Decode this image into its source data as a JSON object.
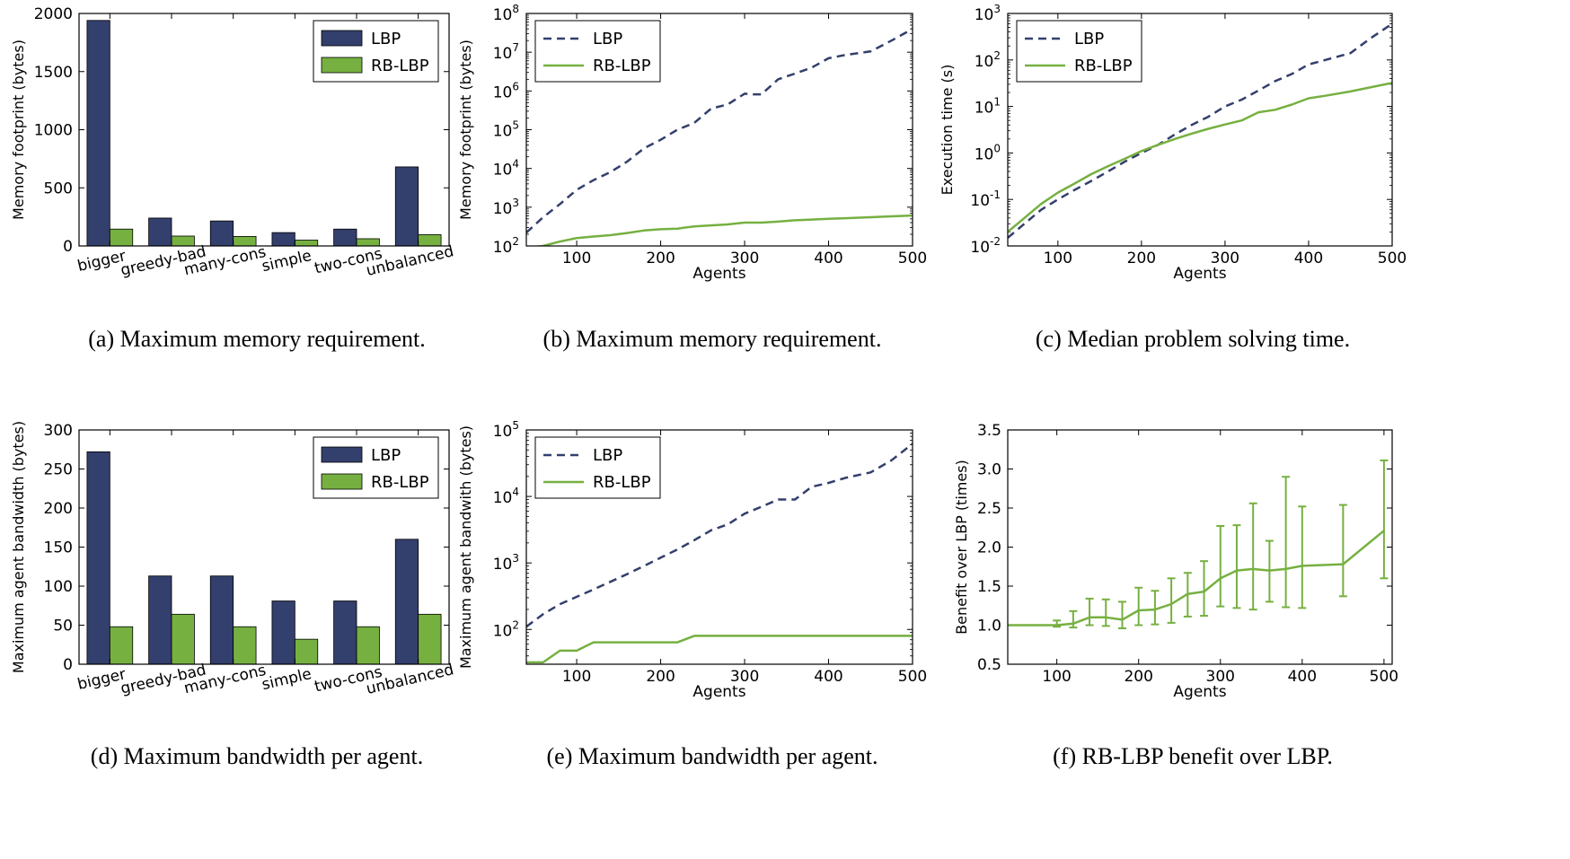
{
  "colors": {
    "lbp": "#333f6c",
    "rblbp": "#76b041",
    "axis": "#000000"
  },
  "chart_data": [
    {
      "id": "a",
      "type": "bar",
      "caption": "(a) Maximum memory requirement.",
      "ylabel": "Memory footprint (bytes)",
      "xlabel": "",
      "ylim": [
        0,
        2000
      ],
      "yticks": [
        0,
        500,
        1000,
        1500,
        2000
      ],
      "ytick_labels": [
        "0",
        "500",
        "1000",
        "1500",
        "2000"
      ],
      "categories": [
        "bigger",
        "greedy-bad",
        "many-cons",
        "simple",
        "two-cons",
        "unbalanced"
      ],
      "series": [
        {
          "name": "LBP",
          "color": "#333f6c",
          "values": [
            1940,
            240,
            215,
            115,
            145,
            680
          ]
        },
        {
          "name": "RB-LBP",
          "color": "#76b041",
          "values": [
            145,
            85,
            82,
            50,
            62,
            97
          ]
        }
      ],
      "legend": "upper right"
    },
    {
      "id": "b",
      "type": "line",
      "caption": "(b) Maximum memory requirement.",
      "ylabel": "Memory footprint (bytes)",
      "xlabel": "Agents",
      "yscale": "log",
      "xlim": [
        40,
        500
      ],
      "ylim": [
        100,
        100000000
      ],
      "xticks": [
        100,
        200,
        300,
        400,
        500
      ],
      "xtick_labels": [
        "100",
        "200",
        "300",
        "400",
        "500"
      ],
      "yticks": [
        100,
        1000,
        10000,
        100000,
        1000000,
        10000000,
        100000000
      ],
      "ytick_labels": [
        {
          "base": "10",
          "exp": "2"
        },
        {
          "base": "10",
          "exp": "3"
        },
        {
          "base": "10",
          "exp": "4"
        },
        {
          "base": "10",
          "exp": "5"
        },
        {
          "base": "10",
          "exp": "6"
        },
        {
          "base": "10",
          "exp": "7"
        },
        {
          "base": "10",
          "exp": "8"
        }
      ],
      "series": [
        {
          "name": "LBP",
          "style": "dashed",
          "color": "#333f6c",
          "x": [
            40,
            60,
            80,
            100,
            120,
            140,
            160,
            180,
            200,
            220,
            240,
            260,
            280,
            300,
            310,
            320,
            340,
            360,
            380,
            400,
            420,
            450,
            475,
            500
          ],
          "y": [
            220,
            550,
            1200,
            2800,
            5000,
            8000,
            15000,
            33000,
            55000,
            100000,
            150000,
            350000,
            450000,
            850000,
            820000,
            820000,
            2000000,
            2800000,
            4000000,
            7000000,
            8500000,
            10500000,
            20000000,
            40000000
          ]
        },
        {
          "name": "RB-LBP",
          "style": "solid",
          "color": "#76b041",
          "x": [
            40,
            60,
            80,
            100,
            120,
            140,
            160,
            180,
            200,
            220,
            240,
            260,
            280,
            300,
            320,
            340,
            360,
            380,
            400,
            420,
            450,
            475,
            500
          ],
          "y": [
            90,
            100,
            130,
            160,
            175,
            190,
            215,
            250,
            270,
            280,
            320,
            340,
            360,
            400,
            400,
            425,
            460,
            480,
            500,
            520,
            550,
            580,
            610
          ]
        }
      ],
      "legend": "upper left"
    },
    {
      "id": "c",
      "type": "line",
      "caption": "(c) Median problem solving time.",
      "ylabel": "Execution time (s)",
      "xlabel": "Agents",
      "yscale": "log",
      "xlim": [
        40,
        500
      ],
      "ylim": [
        0.01,
        1000
      ],
      "xticks": [
        100,
        200,
        300,
        400,
        500
      ],
      "xtick_labels": [
        "100",
        "200",
        "300",
        "400",
        "500"
      ],
      "yticks": [
        0.01,
        0.1,
        1,
        10,
        100,
        1000
      ],
      "ytick_labels": [
        {
          "base": "10",
          "exp": "-2"
        },
        {
          "base": "10",
          "exp": "-1"
        },
        {
          "base": "10",
          "exp": "0"
        },
        {
          "base": "10",
          "exp": "1"
        },
        {
          "base": "10",
          "exp": "2"
        },
        {
          "base": "10",
          "exp": "3"
        }
      ],
      "series": [
        {
          "name": "LBP",
          "style": "dashed",
          "color": "#333f6c",
          "x": [
            40,
            60,
            80,
            100,
            120,
            140,
            160,
            180,
            200,
            220,
            240,
            260,
            280,
            300,
            320,
            340,
            360,
            380,
            400,
            420,
            450,
            475,
            500
          ],
          "y": [
            0.015,
            0.03,
            0.06,
            0.1,
            0.16,
            0.25,
            0.4,
            0.65,
            1.0,
            1.5,
            2.5,
            4.0,
            6.0,
            10,
            14,
            22,
            35,
            50,
            80,
            100,
            140,
            300,
            600
          ]
        },
        {
          "name": "RB-LBP",
          "style": "solid",
          "color": "#76b041",
          "x": [
            40,
            60,
            80,
            100,
            120,
            140,
            160,
            180,
            200,
            220,
            240,
            260,
            280,
            300,
            320,
            340,
            360,
            380,
            400,
            420,
            450,
            475,
            500
          ],
          "y": [
            0.02,
            0.04,
            0.08,
            0.14,
            0.22,
            0.35,
            0.52,
            0.75,
            1.1,
            1.5,
            2.0,
            2.6,
            3.3,
            4.1,
            5.0,
            7.5,
            8.5,
            11,
            15,
            17,
            21,
            26,
            32
          ]
        }
      ],
      "legend": "upper left"
    },
    {
      "id": "d",
      "type": "bar",
      "caption": "(d) Maximum bandwidth per agent.",
      "ylabel": "Maximum agent bandwidth (bytes)",
      "xlabel": "",
      "ylim": [
        0,
        300
      ],
      "yticks": [
        0,
        50,
        100,
        150,
        200,
        250,
        300
      ],
      "ytick_labels": [
        "0",
        "50",
        "100",
        "150",
        "200",
        "250",
        "300"
      ],
      "categories": [
        "bigger",
        "greedy-bad",
        "many-cons",
        "simple",
        "two-cons",
        "unbalanced"
      ],
      "series": [
        {
          "name": "LBP",
          "color": "#333f6c",
          "values": [
            272,
            113,
            113,
            81,
            81,
            160
          ]
        },
        {
          "name": "RB-LBP",
          "color": "#76b041",
          "values": [
            48,
            64,
            48,
            32,
            48,
            64
          ]
        }
      ],
      "legend": "upper right"
    },
    {
      "id": "e",
      "type": "line",
      "caption": "(e) Maximum bandwidth per agent.",
      "ylabel": "Maximum agent bandwith (bytes)",
      "xlabel": "Agents",
      "yscale": "log",
      "xlim": [
        40,
        500
      ],
      "ylim": [
        30,
        100000
      ],
      "xticks": [
        100,
        200,
        300,
        400,
        500
      ],
      "xtick_labels": [
        "100",
        "200",
        "300",
        "400",
        "500"
      ],
      "yticks": [
        100,
        1000,
        10000,
        100000
      ],
      "ytick_labels": [
        {
          "base": "10",
          "exp": "2"
        },
        {
          "base": "10",
          "exp": "3"
        },
        {
          "base": "10",
          "exp": "4"
        },
        {
          "base": "10",
          "exp": "5"
        }
      ],
      "series": [
        {
          "name": "LBP",
          "style": "dashed",
          "color": "#333f6c",
          "x": [
            40,
            60,
            80,
            100,
            120,
            140,
            160,
            180,
            200,
            220,
            240,
            260,
            280,
            300,
            320,
            340,
            360,
            380,
            400,
            420,
            450,
            475,
            500
          ],
          "y": [
            110,
            170,
            240,
            310,
            400,
            520,
            680,
            900,
            1200,
            1600,
            2200,
            3100,
            3800,
            5500,
            7000,
            9000,
            9000,
            14000,
            16000,
            19000,
            23000,
            35000,
            62000
          ]
        },
        {
          "name": "RB-LBP",
          "style": "solid",
          "color": "#76b041",
          "x": [
            40,
            60,
            80,
            100,
            120,
            140,
            160,
            180,
            200,
            220,
            240,
            260,
            280,
            300,
            320,
            340,
            360,
            380,
            400,
            420,
            450,
            475,
            500
          ],
          "y": [
            32,
            32,
            48,
            48,
            64,
            64,
            64,
            64,
            64,
            64,
            80,
            80,
            80,
            80,
            80,
            80,
            80,
            80,
            80,
            80,
            80,
            80,
            80
          ]
        }
      ],
      "legend": "upper left"
    },
    {
      "id": "f",
      "type": "line",
      "caption": "(f) RB-LBP benefit over LBP.",
      "ylabel": "Benefit over LBP (times)",
      "xlabel": "Agents",
      "xlim": [
        40,
        510
      ],
      "ylim": [
        0.5,
        3.5
      ],
      "xticks": [
        100,
        200,
        300,
        400,
        500
      ],
      "xtick_labels": [
        "100",
        "200",
        "300",
        "400",
        "500"
      ],
      "yticks": [
        0.5,
        1.0,
        1.5,
        2.0,
        2.5,
        3.0,
        3.5
      ],
      "ytick_labels": [
        "0.5",
        "1.0",
        "1.5",
        "2.0",
        "2.5",
        "3.0",
        "3.5"
      ],
      "series": [
        {
          "name": "RB-LBP benefit",
          "style": "solid",
          "color": "#76b041",
          "x": [
            40,
            60,
            80,
            100,
            120,
            140,
            160,
            180,
            200,
            220,
            240,
            260,
            280,
            300,
            320,
            340,
            360,
            380,
            400,
            450,
            500
          ],
          "y": [
            1.0,
            1.0,
            1.0,
            1.0,
            1.02,
            1.1,
            1.1,
            1.07,
            1.19,
            1.2,
            1.27,
            1.4,
            1.43,
            1.6,
            1.7,
            1.72,
            1.7,
            1.72,
            1.76,
            1.78,
            2.21
          ],
          "err_low": [
            1.0,
            1.0,
            1.0,
            0.98,
            0.97,
            1.0,
            0.99,
            0.96,
            1.0,
            1.01,
            1.03,
            1.11,
            1.12,
            1.24,
            1.22,
            1.2,
            1.3,
            1.23,
            1.22,
            1.37,
            1.6
          ],
          "err_high": [
            1.0,
            1.0,
            1.0,
            1.06,
            1.18,
            1.34,
            1.33,
            1.3,
            1.48,
            1.44,
            1.6,
            1.67,
            1.82,
            2.27,
            2.28,
            2.56,
            2.08,
            2.9,
            2.52,
            2.54,
            3.11
          ]
        }
      ],
      "legend": "none"
    }
  ]
}
